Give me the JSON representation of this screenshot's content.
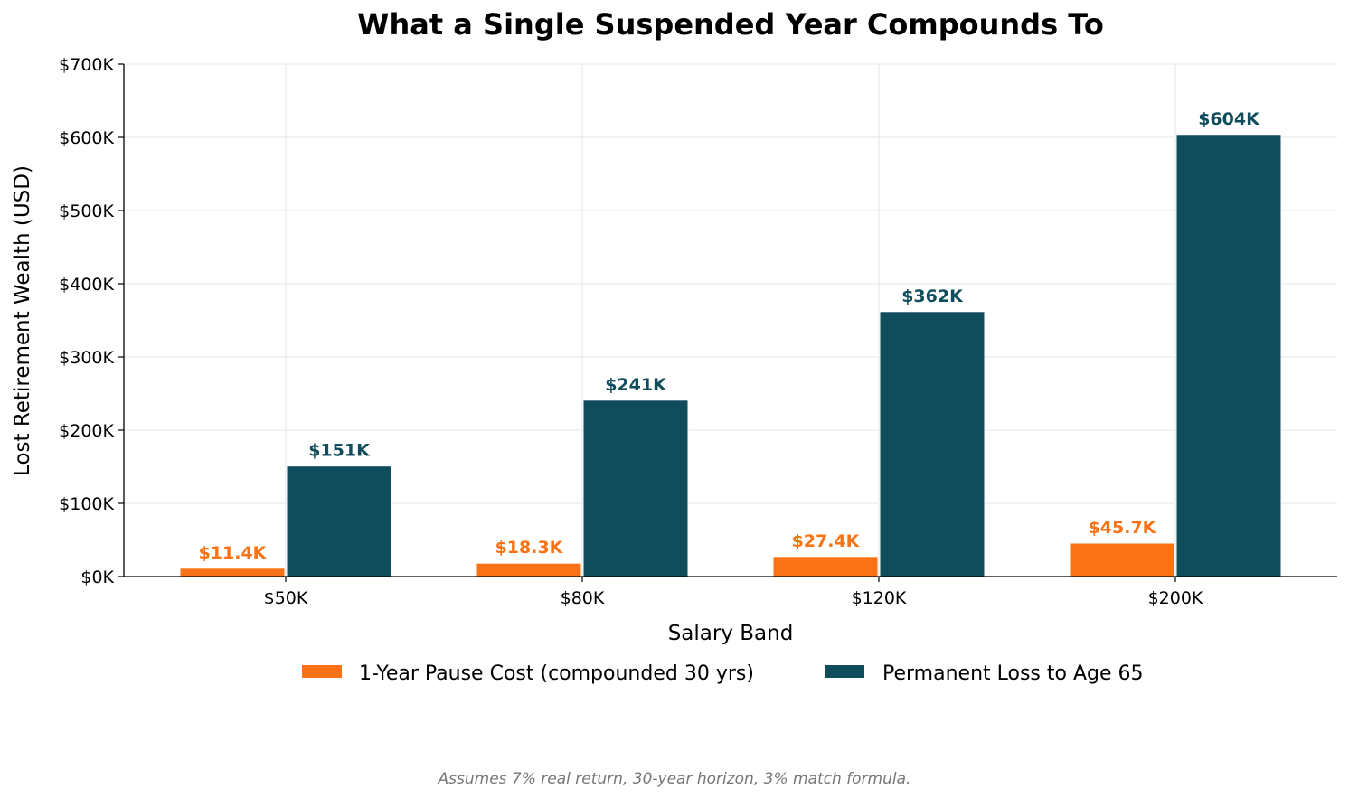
{
  "colors": {
    "series_1": "#f97316",
    "series_2": "#0f4c5c",
    "grid": "#e5e5e5",
    "footnote": "#777777"
  },
  "chart_data": {
    "type": "bar",
    "title": "What a Single Suspended Year Compounds To",
    "xlabel": "Salary Band",
    "ylabel": "Lost Retirement Wealth (USD)",
    "categories": [
      "$50K",
      "$80K",
      "$120K",
      "$200K"
    ],
    "ylim": [
      0,
      700000
    ],
    "yticks": [
      0,
      100000,
      200000,
      300000,
      400000,
      500000,
      600000,
      700000
    ],
    "ytick_labels": [
      "$0K",
      "$100K",
      "$200K",
      "$300K",
      "$400K",
      "$500K",
      "$600K",
      "$700K"
    ],
    "grid": true,
    "legend_position": "bottom-center",
    "series": [
      {
        "name": "1-Year Pause Cost (compounded 30 yrs)",
        "values": [
          11400,
          18300,
          27400,
          45700
        ],
        "labels": [
          "$11.4K",
          "$18.3K",
          "$27.4K",
          "$45.7K"
        ]
      },
      {
        "name": "Permanent Loss to Age 65",
        "values": [
          151000,
          241000,
          362000,
          604000
        ],
        "labels": [
          "$151K",
          "$241K",
          "$362K",
          "$604K"
        ]
      }
    ]
  },
  "footnote": "Assumes 7% real return, 30-year horizon, 3% match formula."
}
